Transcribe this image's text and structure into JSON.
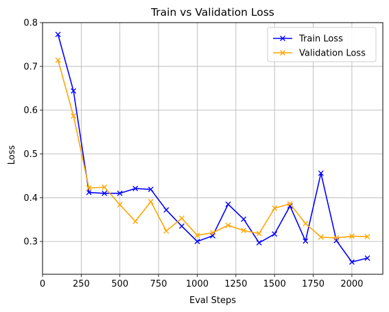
{
  "chart_data": {
    "type": "line",
    "title": "Train vs Validation Loss",
    "xlabel": "Eval Steps",
    "ylabel": "Loss",
    "xlim": [
      0,
      2200
    ],
    "ylim": [
      0.225,
      0.8
    ],
    "xticks": [
      0,
      250,
      500,
      750,
      1000,
      1250,
      1500,
      1750,
      2000
    ],
    "yticks": [
      0.3,
      0.4,
      0.5,
      0.6,
      0.7,
      0.8
    ],
    "grid": true,
    "legend_position": "top-right",
    "x": [
      100,
      200,
      300,
      400,
      500,
      600,
      700,
      800,
      900,
      1000,
      1100,
      1200,
      1300,
      1400,
      1500,
      1600,
      1700,
      1800,
      1900,
      2000,
      2100
    ],
    "series": [
      {
        "name": "Train Loss",
        "color": "#0000ff",
        "marker": "x",
        "values": [
          0.773,
          0.644,
          0.412,
          0.41,
          0.41,
          0.421,
          0.419,
          0.372,
          0.335,
          0.3,
          0.313,
          0.385,
          0.351,
          0.297,
          0.317,
          0.381,
          0.301,
          0.456,
          0.302,
          0.253,
          0.262
        ]
      },
      {
        "name": "Validation Loss",
        "color": "#ffa500",
        "marker": "x",
        "values": [
          0.714,
          0.587,
          0.422,
          0.424,
          0.384,
          0.346,
          0.391,
          0.324,
          0.353,
          0.314,
          0.32,
          0.337,
          0.325,
          0.318,
          0.376,
          0.386,
          0.341,
          0.31,
          0.308,
          0.312,
          0.311
        ]
      }
    ]
  }
}
